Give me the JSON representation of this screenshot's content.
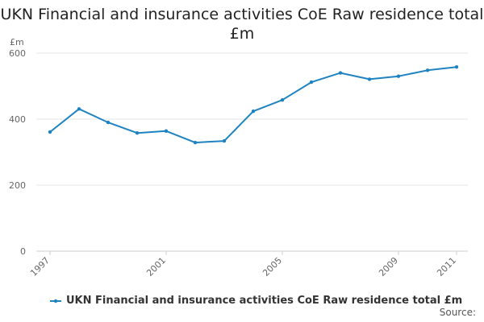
{
  "chart_data": {
    "type": "line",
    "title": "UKN Financial and insurance activities CoE Raw residence total £m",
    "ylabel": "£m",
    "xlabel": "",
    "x": [
      1997,
      1998,
      1999,
      2000,
      2001,
      2002,
      2003,
      2004,
      2005,
      2006,
      2007,
      2008,
      2009,
      2010,
      2011
    ],
    "x_tick_labels": [
      "1997",
      "2001",
      "2005",
      "2009",
      "2011"
    ],
    "y_ticks": [
      0,
      200,
      400,
      600
    ],
    "ylim": [
      0,
      600
    ],
    "grid": true,
    "legend_position": "bottom-left",
    "series": [
      {
        "name": "UKN Financial and insurance activities CoE Raw residence total £m",
        "color": "#1f83c1",
        "values": [
          361,
          431,
          390,
          358,
          364,
          329,
          334,
          424,
          458,
          512,
          540,
          521,
          530,
          548,
          558
        ]
      }
    ]
  },
  "source_label": "Source:"
}
